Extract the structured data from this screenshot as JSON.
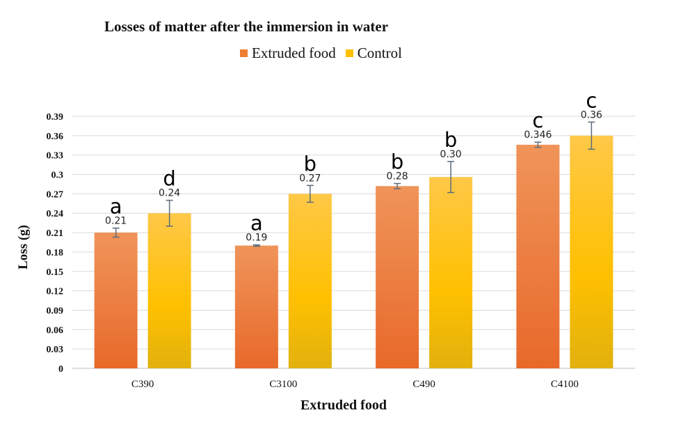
{
  "chart_data": {
    "type": "bar",
    "title": "Losses of matter after the immersion in water",
    "xlabel": "Extruded food",
    "ylabel": "Loss (g)",
    "categories": [
      "C390",
      "C3100",
      "C490",
      "C4100"
    ],
    "series": [
      {
        "name": "Extruded food",
        "color": "#ed7d31",
        "values": [
          0.21,
          0.19,
          0.282,
          0.346
        ],
        "data_labels": [
          "0.21",
          "0.19",
          "0.28",
          "0.346"
        ],
        "errors": [
          0.007,
          0.001,
          0.004,
          0.004
        ],
        "letters": [
          "a",
          "a",
          "b",
          "c"
        ]
      },
      {
        "name": "Control",
        "color": "#ffc000",
        "values": [
          0.24,
          0.27,
          0.296,
          0.36
        ],
        "data_labels": [
          "0.24",
          "0.27",
          "0.30",
          "0.36"
        ],
        "errors": [
          0.02,
          0.013,
          0.024,
          0.021
        ],
        "letters": [
          "d",
          "b",
          "b",
          "c"
        ]
      }
    ],
    "yticks": [
      "0",
      "0.03",
      "0.06",
      "0.09",
      "0.12",
      "0.15",
      "0.18",
      "0.21",
      "0.24",
      "0.27",
      "0.3",
      "0.33",
      "0.36",
      "0.39"
    ],
    "ylim": [
      0,
      0.39
    ],
    "grid": true,
    "legend_position": "top"
  }
}
